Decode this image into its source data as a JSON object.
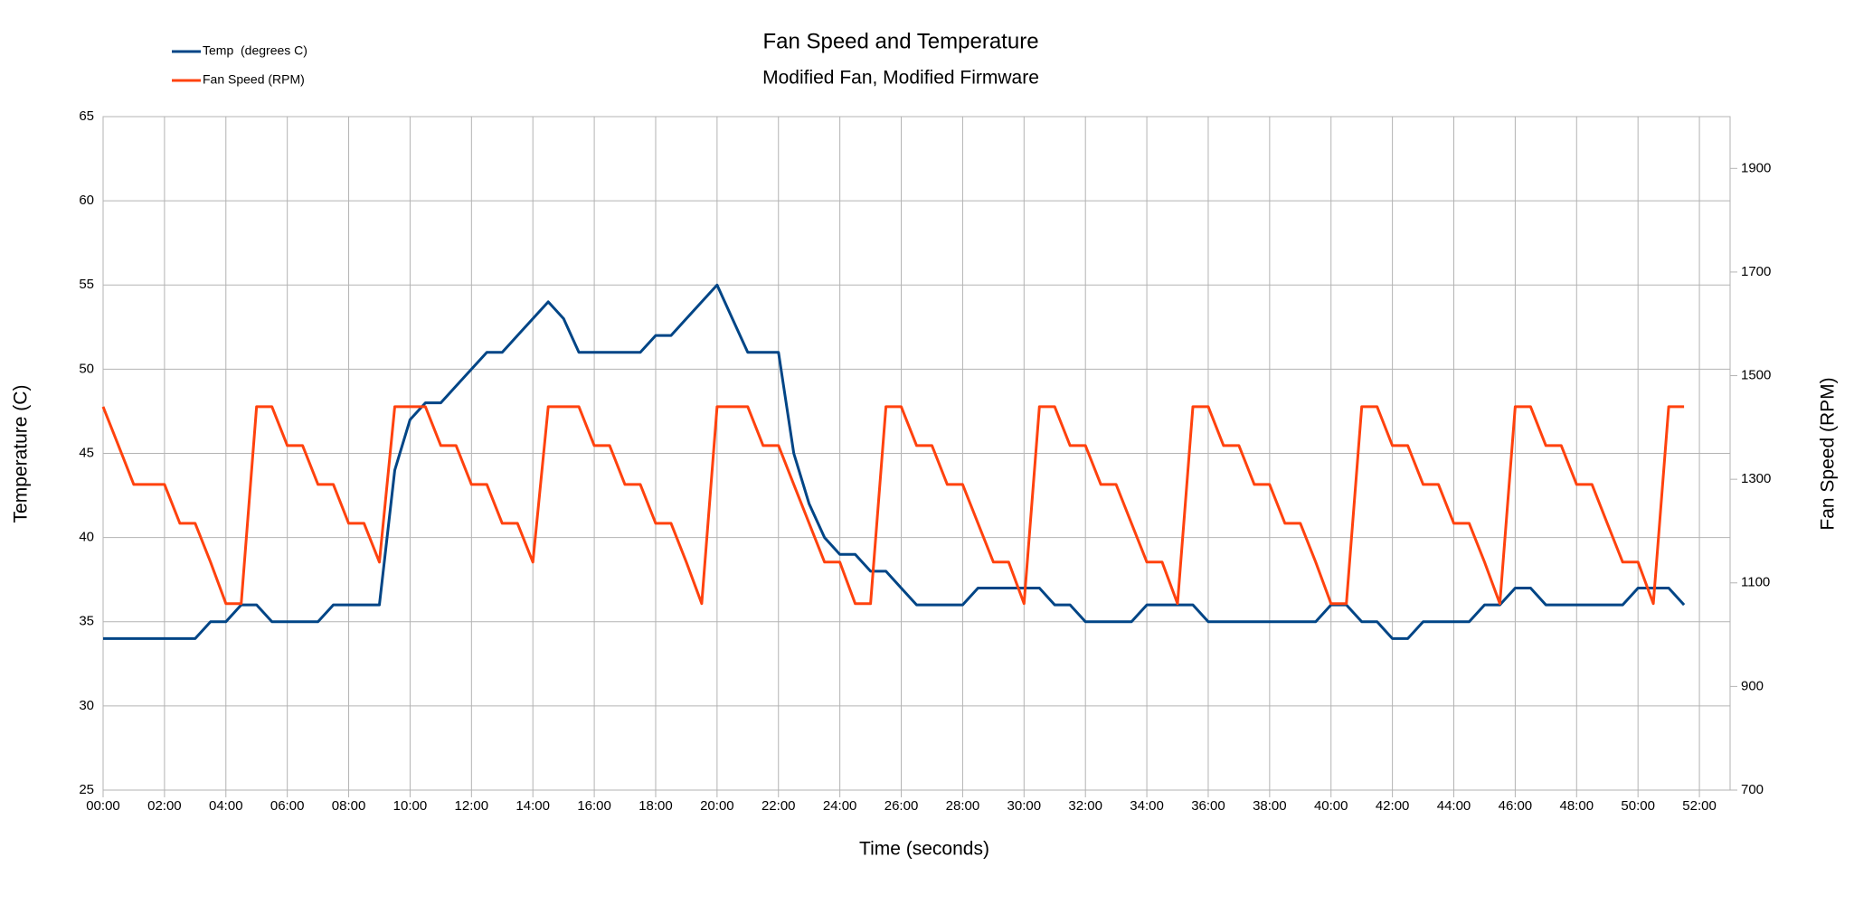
{
  "chart_data": {
    "type": "line",
    "title": "Fan Speed and Temperature",
    "subtitle": "Modified Fan, Modified Firmware",
    "xlabel": "Time (seconds)",
    "ylabel": "Temperature (C)",
    "y2label": "Fan Speed (RPM)",
    "x": [
      0,
      0.5,
      1,
      1.5,
      2,
      2.5,
      3,
      3.5,
      4,
      4.5,
      5,
      5.5,
      6,
      6.5,
      7,
      7.5,
      8,
      8.5,
      9,
      9.5,
      10,
      10.5,
      11,
      11.5,
      12,
      12.5,
      13,
      13.5,
      14,
      14.5,
      15,
      15.5,
      16,
      16.5,
      17,
      17.5,
      18,
      18.5,
      19,
      19.5,
      20,
      20.5,
      21,
      21.5,
      22,
      22.5,
      23,
      23.5,
      24,
      24.5,
      25,
      25.5,
      26,
      26.5,
      27,
      27.5,
      28,
      28.5,
      29,
      29.5,
      30,
      30.5,
      31,
      31.5,
      32,
      32.5,
      33,
      33.5,
      34,
      34.5,
      35,
      35.5,
      36,
      36.5,
      37,
      37.5,
      38,
      38.5,
      39,
      39.5,
      40,
      40.5,
      41,
      41.5,
      42,
      42.5,
      43,
      43.5,
      44,
      44.5,
      45,
      45.5,
      46,
      46.5,
      47,
      47.5,
      48,
      48.5,
      49,
      49.5,
      50,
      50.5,
      51,
      51.5
    ],
    "series": [
      {
        "name": "Temp  (degrees C)",
        "color": "#004586",
        "values": [
          34,
          34,
          34,
          34,
          34,
          34,
          34,
          35,
          35,
          36,
          36,
          35,
          35,
          35,
          35,
          36,
          36,
          36,
          36,
          44,
          47,
          48,
          48,
          49,
          50,
          51,
          51,
          52,
          53,
          54,
          53,
          51,
          51,
          51,
          51,
          51,
          52,
          52,
          53,
          54,
          55,
          53,
          51,
          51,
          51,
          45,
          42,
          40,
          39,
          39,
          38,
          38,
          37,
          36,
          36,
          36,
          36,
          37,
          37,
          37,
          37,
          37,
          36,
          36,
          35,
          35,
          35,
          35,
          36,
          36,
          36,
          36,
          35,
          35,
          35,
          35,
          35,
          35,
          35,
          35,
          36,
          36,
          35,
          35,
          34,
          34,
          35,
          35,
          35,
          35,
          36,
          36,
          37,
          37,
          36,
          36,
          36,
          36,
          36,
          36,
          37,
          37,
          37,
          36
        ]
      },
      {
        "name": "Fan Speed (RPM)",
        "color": "#ff420e",
        "axis": "y2",
        "values": [
          1440,
          1365,
          1290,
          1290,
          1290,
          1215,
          1215,
          1140,
          1060,
          1060,
          1440,
          1440,
          1365,
          1365,
          1290,
          1290,
          1215,
          1215,
          1140,
          1440,
          1440,
          1440,
          1365,
          1365,
          1290,
          1290,
          1215,
          1215,
          1140,
          1440,
          1440,
          1440,
          1365,
          1365,
          1290,
          1290,
          1215,
          1215,
          1140,
          1060,
          1440,
          1440,
          1440,
          1365,
          1365,
          1290,
          1215,
          1140,
          1140,
          1060,
          1060,
          1440,
          1440,
          1365,
          1365,
          1290,
          1290,
          1215,
          1140,
          1140,
          1060,
          1440,
          1440,
          1365,
          1365,
          1290,
          1290,
          1215,
          1140,
          1140,
          1060,
          1440,
          1440,
          1365,
          1365,
          1290,
          1290,
          1215,
          1215,
          1140,
          1060,
          1060,
          1440,
          1440,
          1365,
          1365,
          1290,
          1290,
          1215,
          1215,
          1140,
          1060,
          1440,
          1440,
          1365,
          1365,
          1290,
          1290,
          1215,
          1140,
          1140,
          1060,
          1440,
          1440
        ]
      }
    ],
    "xlim": [
      0,
      53
    ],
    "xticks": [
      {
        "value": 0,
        "label": "00:00"
      },
      {
        "value": 2,
        "label": "02:00"
      },
      {
        "value": 4,
        "label": "04:00"
      },
      {
        "value": 6,
        "label": "06:00"
      },
      {
        "value": 8,
        "label": "08:00"
      },
      {
        "value": 10,
        "label": "10:00"
      },
      {
        "value": 12,
        "label": "12:00"
      },
      {
        "value": 14,
        "label": "14:00"
      },
      {
        "value": 16,
        "label": "16:00"
      },
      {
        "value": 18,
        "label": "18:00"
      },
      {
        "value": 20,
        "label": "20:00"
      },
      {
        "value": 22,
        "label": "22:00"
      },
      {
        "value": 24,
        "label": "24:00"
      },
      {
        "value": 26,
        "label": "26:00"
      },
      {
        "value": 28,
        "label": "28:00"
      },
      {
        "value": 30,
        "label": "30:00"
      },
      {
        "value": 32,
        "label": "32:00"
      },
      {
        "value": 34,
        "label": "34:00"
      },
      {
        "value": 36,
        "label": "36:00"
      },
      {
        "value": 38,
        "label": "38:00"
      },
      {
        "value": 40,
        "label": "40:00"
      },
      {
        "value": 42,
        "label": "42:00"
      },
      {
        "value": 44,
        "label": "44:00"
      },
      {
        "value": 46,
        "label": "46:00"
      },
      {
        "value": 48,
        "label": "48:00"
      },
      {
        "value": 50,
        "label": "50:00"
      },
      {
        "value": 52,
        "label": "52:00"
      }
    ],
    "ylim": [
      25,
      65
    ],
    "yticks": [
      25,
      30,
      35,
      40,
      45,
      50,
      55,
      60,
      65
    ],
    "y2lim": [
      700,
      2000
    ],
    "y2ticks": [
      700,
      900,
      1100,
      1300,
      1500,
      1700,
      1900
    ],
    "grid": true,
    "legend": "top-left"
  }
}
